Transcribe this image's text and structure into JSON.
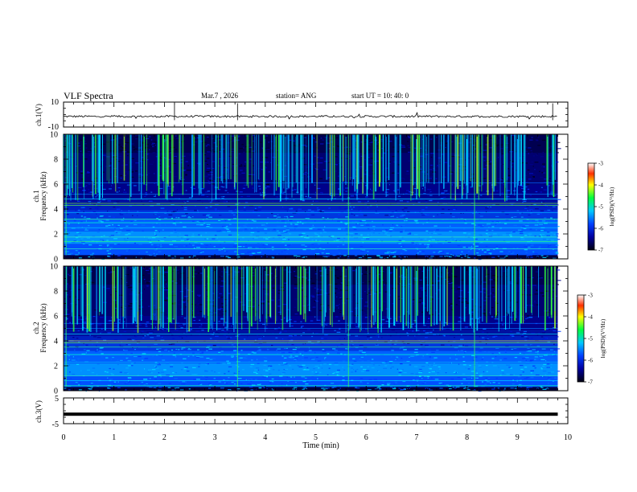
{
  "chart_data": {
    "type": "heatmap",
    "title": "VLF Spectra",
    "date": "Mar.7 , 2026",
    "station": "station= ANG",
    "start_time": "start  UT  =   10: 40: 0",
    "xlabel": "Time (min)",
    "xlim": [
      0,
      10
    ],
    "x_ticks": [
      "0",
      "1",
      "2",
      "3",
      "4",
      "5",
      "6",
      "7",
      "8",
      "9",
      "10"
    ],
    "data_end_min": 9.8,
    "panels": [
      {
        "id": "ch1-waveform",
        "type": "line",
        "ylabel": "ch.1(V)",
        "ylim": [
          -10,
          10
        ],
        "y_ticks": [
          "10",
          "-10"
        ],
        "mean": -1.5
      },
      {
        "id": "ch1-spectrogram",
        "type": "heatmap",
        "ylabel_top": "ch.1",
        "ylabel": "Frequency (kHz)",
        "ylim": [
          0,
          10
        ],
        "y_ticks": [
          "0",
          "2",
          "4",
          "6",
          "8",
          "10"
        ],
        "colorbar": {
          "label": "log(PSD)(V²/Hz)",
          "range": [
            -7,
            -3
          ],
          "ticks": [
            "-3",
            "-4",
            "-5",
            "-6",
            "-7"
          ]
        }
      },
      {
        "id": "ch2-spectrogram",
        "type": "heatmap",
        "ylabel_top": "ch.2",
        "ylabel": "Frequency (kHz)",
        "ylim": [
          0,
          10
        ],
        "y_ticks": [
          "0",
          "2",
          "4",
          "6",
          "8",
          "10"
        ],
        "colorbar": {
          "label": "log(PSD)(V²/Hz)",
          "range": [
            -7,
            -3
          ],
          "ticks": [
            "-3",
            "-4",
            "-5",
            "-6",
            "-7"
          ]
        }
      },
      {
        "id": "ch3-waveform",
        "type": "line",
        "ylabel": "ch.3(V)",
        "ylim": [
          -5,
          5
        ],
        "y_ticks": [
          "5",
          "-5"
        ],
        "mean": -1.3
      }
    ]
  },
  "colors": {
    "background": "#ffffff",
    "axis": "#000000",
    "trace": "#000000"
  }
}
